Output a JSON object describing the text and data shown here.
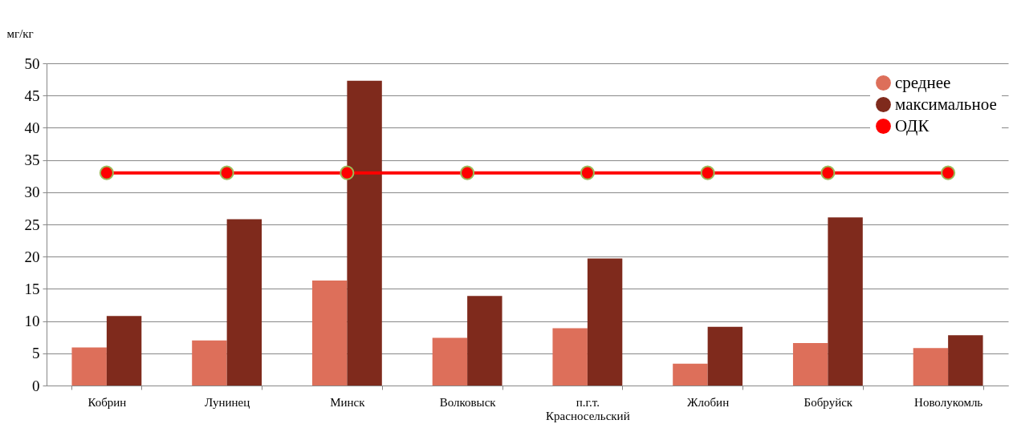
{
  "chart_data": {
    "type": "bar",
    "ylabel": "мг/кг",
    "categories": [
      "Кобрин",
      "Лунинец",
      "Минск",
      "Волковыск",
      "п.г.т. Красносельский",
      "Жлобин",
      "Бобруйск",
      "Новолукомль"
    ],
    "series": [
      {
        "name": "среднее",
        "color": "#dd6f5a",
        "values": [
          5.9,
          7.0,
          16.3,
          7.4,
          8.9,
          3.4,
          6.6,
          5.8
        ]
      },
      {
        "name": "максимальное",
        "color": "#7f2a1c",
        "values": [
          10.8,
          25.8,
          47.3,
          13.9,
          19.7,
          9.1,
          26.1,
          7.8
        ]
      },
      {
        "name": "ОДК",
        "type": "line",
        "color": "#ff0000",
        "marker": "circle",
        "values": [
          33,
          33,
          33,
          33,
          33,
          33,
          33,
          33
        ]
      }
    ],
    "ylim": [
      0,
      50
    ],
    "yticks": [
      0,
      5,
      10,
      15,
      20,
      25,
      30,
      35,
      40,
      45,
      50
    ],
    "grid": "y",
    "legend": "top right"
  }
}
